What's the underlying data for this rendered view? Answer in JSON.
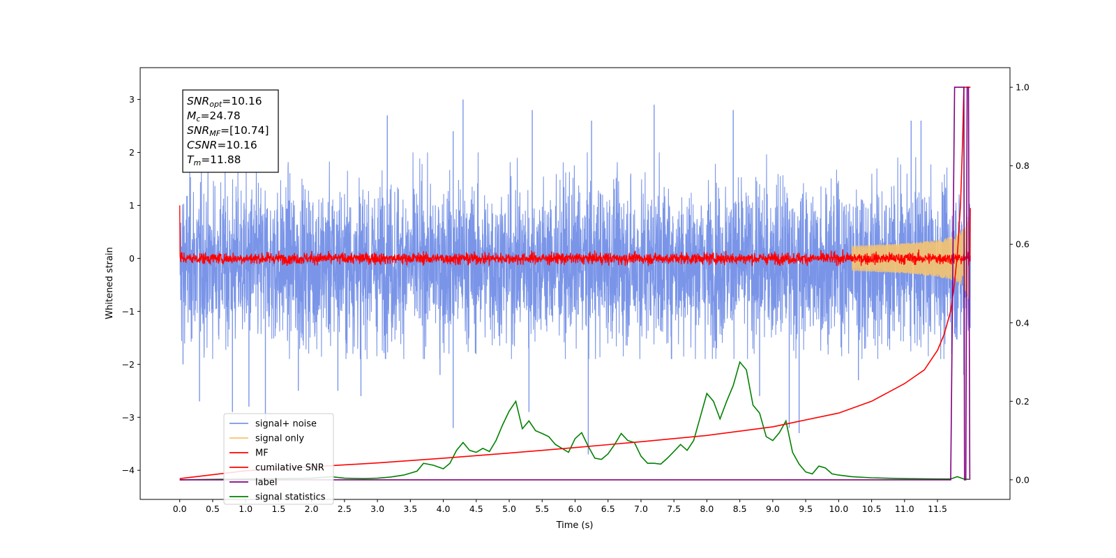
{
  "chart_data": {
    "type": "line",
    "title": "",
    "xlabel": "Time (s)",
    "ylabel": "Whitened strain",
    "xlim": [
      -0.6,
      12.6
    ],
    "ylim": [
      -4.55,
      3.6
    ],
    "y2lim": [
      -0.05,
      1.05
    ],
    "x_ticks": [
      "0.0",
      "0.5",
      "1.0",
      "1.5",
      "2.0",
      "2.5",
      "3.0",
      "3.5",
      "4.0",
      "4.5",
      "5.0",
      "5.5",
      "6.0",
      "6.5",
      "7.0",
      "7.5",
      "8.0",
      "8.5",
      "9.0",
      "9.5",
      "10.0",
      "10.5",
      "11.0",
      "11.5"
    ],
    "y_ticks": [
      "3",
      "2",
      "1",
      "0",
      "−1",
      "−2",
      "−3",
      "−4"
    ],
    "y2_ticks": [
      "1.0",
      "0.8",
      "0.6",
      "0.4",
      "0.2",
      "0.0"
    ],
    "annotations": [
      {
        "name": "SNR",
        "sub": "opt",
        "value": "=10.16"
      },
      {
        "name": "M",
        "sub": "c",
        "value": "=24.78"
      },
      {
        "name": "SNR",
        "sub": "MF",
        "value": "=[10.74]"
      },
      {
        "name": "CSNR",
        "sub": "",
        "value": "=10.16"
      },
      {
        "name": "T",
        "sub": "m",
        "value": "=11.88"
      }
    ],
    "legend": {
      "placement": "lower-left",
      "entries": [
        "signal+ noise",
        "signal only",
        "MF",
        "cumilative SNR",
        "label",
        "signal statistics"
      ]
    },
    "series": [
      {
        "name": "signal+ noise",
        "axis": "left",
        "color": "#7a95e8",
        "kind": "noise",
        "x_range": [
          0,
          12.0
        ],
        "center": -0.1,
        "typical_range": [
          -1.6,
          1.7
        ],
        "spikes": [
          [
            0.05,
            -2.0
          ],
          [
            0.3,
            -2.7
          ],
          [
            0.8,
            -2.9
          ],
          [
            1.05,
            -2.8
          ],
          [
            1.3,
            -3.2
          ],
          [
            1.8,
            -2.5
          ],
          [
            2.4,
            -2.5
          ],
          [
            2.75,
            -2.6
          ],
          [
            3.15,
            2.7
          ],
          [
            3.95,
            -2.2
          ],
          [
            4.15,
            -3.2
          ],
          [
            4.15,
            2.4
          ],
          [
            4.3,
            3.0
          ],
          [
            5.3,
            -2.9
          ],
          [
            5.35,
            2.8
          ],
          [
            6.2,
            -3.7
          ],
          [
            6.25,
            2.6
          ],
          [
            7.2,
            2.9
          ],
          [
            8.4,
            2.8
          ],
          [
            8.8,
            -2.6
          ],
          [
            9.25,
            -3.2
          ],
          [
            9.4,
            -3.3
          ],
          [
            10.3,
            -2.3
          ],
          [
            11.1,
            2.6
          ],
          [
            11.25,
            2.6
          ],
          [
            11.9,
            -2.2
          ]
        ]
      },
      {
        "name": "signal only",
        "axis": "left",
        "color": "#f5c370",
        "kind": "chirp",
        "x_range": [
          10.2,
          11.98
        ],
        "peak_amplitude": 0.75
      },
      {
        "name": "MF",
        "axis": "left",
        "color": "#ff0000",
        "kind": "noise",
        "x_range": [
          0,
          12.0
        ],
        "center": 0.0,
        "typical_range": [
          -0.12,
          0.15
        ],
        "start_value": 1.0,
        "end_value": 0.95
      },
      {
        "name": "cumilative SNR",
        "axis": "right",
        "color": "#ff0000",
        "kind": "line",
        "x": [
          0,
          1,
          2,
          3,
          4,
          5,
          6,
          7,
          8,
          9,
          10,
          10.5,
          11,
          11.3,
          11.5,
          11.6,
          11.7,
          11.75,
          11.8,
          11.85,
          11.88,
          11.9,
          12.0
        ],
        "y": [
          0.003,
          0.023,
          0.033,
          0.043,
          0.055,
          0.068,
          0.082,
          0.097,
          0.113,
          0.135,
          0.17,
          0.2,
          0.245,
          0.28,
          0.33,
          0.37,
          0.43,
          0.49,
          0.57,
          0.7,
          0.86,
          1.0,
          1.0
        ]
      },
      {
        "name": "label",
        "axis": "right",
        "color": "#800080",
        "kind": "line",
        "x": [
          0,
          11.7,
          11.76,
          11.9,
          11.91,
          11.93,
          11.95,
          11.97,
          11.99
        ],
        "y": [
          0,
          0,
          1,
          1,
          0,
          0,
          1,
          1,
          0
        ]
      },
      {
        "name": "signal statistics",
        "axis": "right",
        "color": "#008000",
        "kind": "line",
        "x": [
          0,
          0.5,
          1,
          1.5,
          2,
          2.3,
          2.5,
          2.8,
          3,
          3.2,
          3.4,
          3.6,
          3.7,
          3.85,
          4,
          4.1,
          4.2,
          4.3,
          4.4,
          4.5,
          4.6,
          4.7,
          4.8,
          4.9,
          5,
          5.1,
          5.2,
          5.3,
          5.4,
          5.5,
          5.6,
          5.7,
          5.8,
          5.9,
          6,
          6.1,
          6.2,
          6.3,
          6.4,
          6.5,
          6.6,
          6.7,
          6.8,
          6.9,
          7,
          7.1,
          7.2,
          7.3,
          7.4,
          7.5,
          7.6,
          7.7,
          7.8,
          7.9,
          8,
          8.1,
          8.2,
          8.3,
          8.4,
          8.5,
          8.6,
          8.7,
          8.8,
          8.9,
          9,
          9.1,
          9.2,
          9.3,
          9.4,
          9.5,
          9.6,
          9.7,
          9.8,
          9.9,
          10,
          10.2,
          10.5,
          11,
          11.5,
          11.7,
          11.8,
          11.9,
          11.98
        ],
        "y": [
          0,
          0.001,
          0.002,
          0.003,
          0.004,
          0.008,
          0.004,
          0.003,
          0.004,
          0.007,
          0.012,
          0.022,
          0.042,
          0.037,
          0.028,
          0.042,
          0.075,
          0.095,
          0.075,
          0.07,
          0.08,
          0.072,
          0.1,
          0.14,
          0.175,
          0.2,
          0.13,
          0.15,
          0.125,
          0.118,
          0.11,
          0.09,
          0.08,
          0.07,
          0.105,
          0.12,
          0.085,
          0.055,
          0.052,
          0.066,
          0.09,
          0.118,
          0.1,
          0.095,
          0.06,
          0.042,
          0.042,
          0.04,
          0.055,
          0.072,
          0.09,
          0.075,
          0.1,
          0.16,
          0.22,
          0.2,
          0.155,
          0.2,
          0.24,
          0.3,
          0.28,
          0.19,
          0.17,
          0.11,
          0.1,
          0.12,
          0.15,
          0.07,
          0.04,
          0.02,
          0.015,
          0.035,
          0.03,
          0.015,
          0.012,
          0.008,
          0.005,
          0.003,
          0.002,
          0.002,
          0.008,
          0.002,
          0.001
        ]
      }
    ]
  }
}
